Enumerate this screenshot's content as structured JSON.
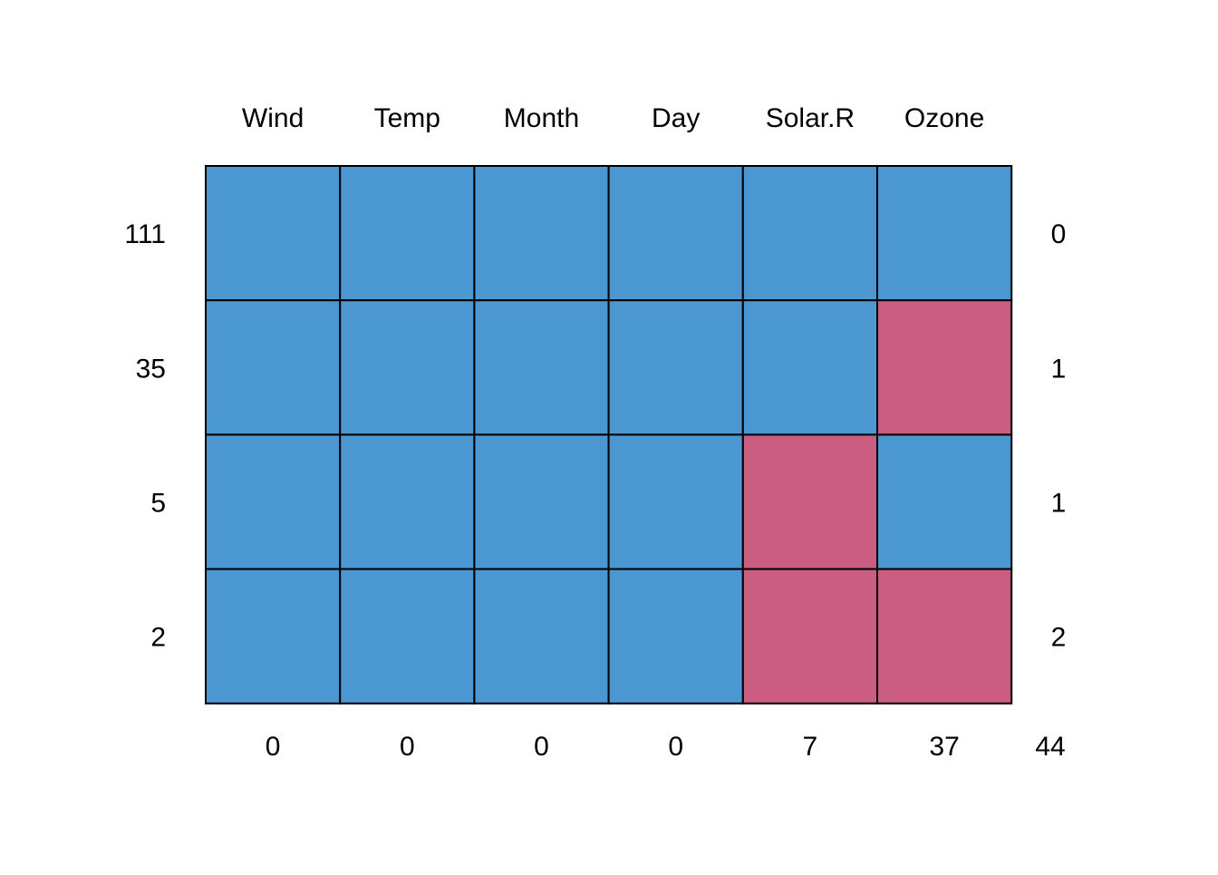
{
  "chart_data": {
    "type": "heatmap",
    "title": "",
    "columns": [
      "Wind",
      "Temp",
      "Month",
      "Day",
      "Solar.R",
      "Ozone"
    ],
    "rows": [
      {
        "count": "111",
        "pattern": [
          1,
          1,
          1,
          1,
          1,
          1
        ],
        "missing": "0"
      },
      {
        "count": "35",
        "pattern": [
          1,
          1,
          1,
          1,
          1,
          0
        ],
        "missing": "1"
      },
      {
        "count": "5",
        "pattern": [
          1,
          1,
          1,
          1,
          0,
          1
        ],
        "missing": "1"
      },
      {
        "count": "2",
        "pattern": [
          1,
          1,
          1,
          1,
          0,
          0
        ],
        "missing": "2"
      }
    ],
    "column_missing_totals": [
      "0",
      "0",
      "0",
      "0",
      "7",
      "37"
    ],
    "total_missing": "44",
    "legend": "none",
    "grid": true,
    "colors": {
      "observed": "#4B97D2",
      "missing": "#CB5D82",
      "border": "#000000"
    }
  }
}
